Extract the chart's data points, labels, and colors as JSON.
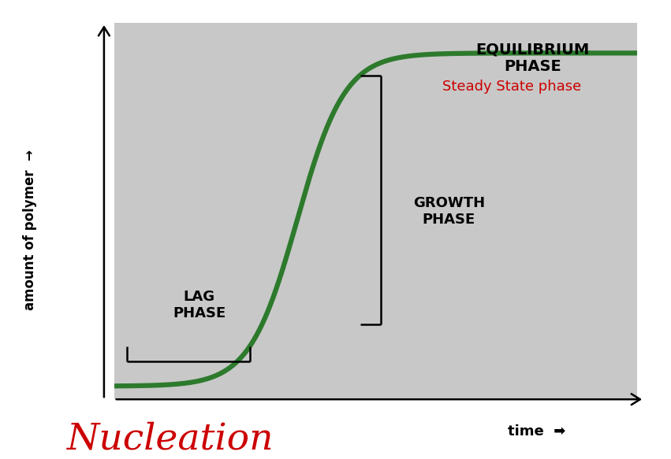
{
  "background_color": "#c8c8c8",
  "plot_bg_color": "#c8c8c8",
  "outer_bg_color": "#ffffff",
  "curve_color": "#2d7a2d",
  "curve_linewidth": 4.5,
  "title": "Nucleation",
  "title_color": "#cc0000",
  "title_fontsize": 34,
  "ylabel": "amount of polymer",
  "xlabel": "time",
  "axis_arrow_label_fontsize": 12,
  "lag_phase_label": "LAG\nPHASE",
  "growth_phase_label": "GROWTH\nPHASE",
  "equilibrium_phase_label": "EQUILIBRIUM\nPHASE",
  "steady_state_label": "Steady State phase",
  "steady_state_color": "#cc0000",
  "steady_state_fontsize": 13,
  "phase_label_fontsize": 13,
  "xlim": [
    0,
    10
  ],
  "ylim": [
    0,
    10
  ],
  "sigmoid_x0": 3.5,
  "sigmoid_k": 2.2,
  "y_min": 0.35,
  "y_max": 9.2
}
